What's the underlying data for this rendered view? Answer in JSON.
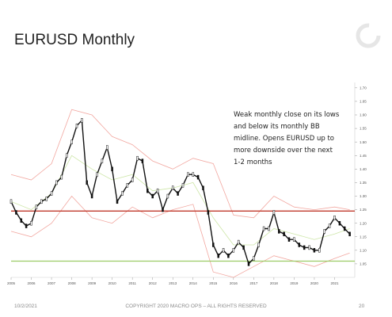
{
  "slide": {
    "title": "EURUSD Monthly",
    "footer_date": "10/2/2021",
    "footer_copyright": "COPYRIGHT 2020 MACRO OPS – ALL RIGHTS RESERVED",
    "page_number": "20"
  },
  "chart_data": {
    "type": "line",
    "title": "",
    "annotation": [
      "Weak monthly close on its lows",
      "and below its monthly BB",
      "midline. Opens EURUSD up to",
      "more downside over the next",
      "1-2 months"
    ],
    "xlabel": "",
    "ylabel": "",
    "x_ticks": [
      "2005",
      "2006",
      "2007",
      "2008",
      "2009",
      "2010",
      "2011",
      "2012",
      "2013",
      "2014",
      "2015",
      "2016",
      "2017",
      "2018",
      "2019",
      "2020",
      "2021"
    ],
    "y_ticks": [
      1.05,
      1.1,
      1.15,
      1.2,
      1.25,
      1.3,
      1.35,
      1.4,
      1.45,
      1.5,
      1.55,
      1.6,
      1.65,
      1.7
    ],
    "y_tick_labels": [
      "1.05",
      "1.10",
      "1.15",
      "1.20",
      "1.25",
      "1.30",
      "1.35",
      "1.40",
      "1.45",
      "1.50",
      "1.55",
      "1.60",
      "1.65",
      "1.70"
    ],
    "xlim": [
      2005.0,
      2022.0
    ],
    "ylim": [
      1.0,
      1.72
    ],
    "horizontal_lines": [
      {
        "y": 1.245,
        "color": "#c0392b"
      },
      {
        "y": 1.06,
        "color": "#9ccc65"
      }
    ],
    "series": [
      {
        "x": [
          2005.0,
          2005.25,
          2005.5,
          2005.75,
          2006.0,
          2006.25,
          2006.5,
          2006.75,
          2007.0,
          2007.25,
          2007.5,
          2007.75,
          2008.0,
          2008.25,
          2008.5,
          2008.75,
          2009.0,
          2009.25,
          2009.5,
          2009.75,
          2010.0,
          2010.25,
          2010.5,
          2010.75,
          2011.0,
          2011.25,
          2011.5,
          2011.75,
          2012.0,
          2012.25,
          2012.5,
          2012.75,
          2013.0,
          2013.25,
          2013.5,
          2013.75,
          2014.0,
          2014.25,
          2014.5,
          2014.75,
          2015.0,
          2015.25,
          2015.5,
          2015.75,
          2016.0,
          2016.25,
          2016.5,
          2016.75,
          2017.0,
          2017.25,
          2017.5,
          2017.75,
          2018.0,
          2018.25,
          2018.5,
          2018.75,
          2019.0,
          2019.25,
          2019.5,
          2019.75,
          2020.0,
          2020.25,
          2020.5,
          2020.75,
          2021.0,
          2021.25,
          2021.5,
          2021.75
        ],
        "values": [
          1.28,
          1.24,
          1.21,
          1.19,
          1.2,
          1.26,
          1.28,
          1.29,
          1.31,
          1.35,
          1.37,
          1.45,
          1.5,
          1.56,
          1.58,
          1.35,
          1.3,
          1.38,
          1.43,
          1.48,
          1.4,
          1.28,
          1.31,
          1.34,
          1.36,
          1.44,
          1.43,
          1.32,
          1.3,
          1.32,
          1.25,
          1.3,
          1.33,
          1.31,
          1.34,
          1.38,
          1.38,
          1.37,
          1.33,
          1.24,
          1.12,
          1.08,
          1.1,
          1.08,
          1.1,
          1.13,
          1.11,
          1.05,
          1.07,
          1.12,
          1.18,
          1.18,
          1.24,
          1.17,
          1.16,
          1.14,
          1.14,
          1.12,
          1.11,
          1.11,
          1.1,
          1.1,
          1.17,
          1.19,
          1.22,
          1.2,
          1.18,
          1.16
        ],
        "color": "#111111"
      }
    ],
    "bands": [
      {
        "x": [
          2005.0,
          2006.0,
          2007.0,
          2008.0,
          2009.0,
          2010.0,
          2011.0,
          2012.0,
          2013.0,
          2014.0,
          2015.0,
          2016.0,
          2017.0,
          2018.0,
          2019.0,
          2020.0,
          2021.0,
          2021.75
        ],
        "values": [
          1.38,
          1.36,
          1.42,
          1.62,
          1.6,
          1.52,
          1.49,
          1.43,
          1.4,
          1.44,
          1.42,
          1.23,
          1.22,
          1.3,
          1.26,
          1.25,
          1.26,
          1.25
        ],
        "color": "#f2a7a0"
      },
      {
        "x": [
          2005.0,
          2006.0,
          2007.0,
          2008.0,
          2009.0,
          2010.0,
          2011.0,
          2012.0,
          2013.0,
          2014.0,
          2015.0,
          2016.0,
          2017.0,
          2018.0,
          2019.0,
          2020.0,
          2021.0,
          2021.75
        ],
        "values": [
          1.28,
          1.25,
          1.31,
          1.45,
          1.4,
          1.36,
          1.38,
          1.32,
          1.33,
          1.35,
          1.22,
          1.12,
          1.12,
          1.18,
          1.16,
          1.14,
          1.16,
          1.18
        ],
        "color": "#cde6a8"
      },
      {
        "x": [
          2005.0,
          2006.0,
          2007.0,
          2008.0,
          2009.0,
          2010.0,
          2011.0,
          2012.0,
          2013.0,
          2014.0,
          2015.0,
          2016.0,
          2017.0,
          2018.0,
          2019.0,
          2020.0,
          2021.0,
          2021.75
        ],
        "values": [
          1.17,
          1.15,
          1.2,
          1.3,
          1.22,
          1.2,
          1.26,
          1.22,
          1.25,
          1.27,
          1.02,
          1.0,
          1.04,
          1.08,
          1.06,
          1.04,
          1.07,
          1.09
        ],
        "color": "#f2a7a0"
      }
    ]
  }
}
